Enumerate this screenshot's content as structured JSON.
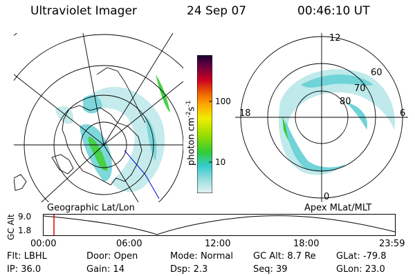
{
  "header": {
    "title": "Ultraviolet Imager",
    "date": "24 Sep 07",
    "time": "00:46:10 UT"
  },
  "left_panel": {
    "label": "Geographic Lat/Lon"
  },
  "right_panel": {
    "label": "Apex MLat/MLT",
    "mlt_labels": [
      "12",
      "18",
      "6",
      "0"
    ],
    "mlat_labels": [
      "60",
      "70",
      "80"
    ]
  },
  "colorbar": {
    "unit": "photon cm",
    "exp1": "-2",
    "mid": "s",
    "exp2": "-1",
    "ticks": [
      "100",
      "10"
    ]
  },
  "timeline": {
    "axis_title": "GC Alt",
    "y_labels": [
      "9.0",
      "1.8"
    ],
    "x_labels": [
      "00:00",
      "06:00",
      "12:00",
      "18:00",
      "23:59"
    ]
  },
  "footer": {
    "row1": [
      {
        "key": "Flt:",
        "val": "LBHL"
      },
      {
        "key": "Door:",
        "val": "Open"
      },
      {
        "key": "Mode:",
        "val": "Normal"
      },
      {
        "key": "GC Alt:",
        "val": "8.7 Re"
      },
      {
        "key": "GLat:",
        "val": "-79.8"
      }
    ],
    "row2": [
      {
        "key": "IP:",
        "val": "36.0"
      },
      {
        "key": "Gain:",
        "val": "14"
      },
      {
        "key": "Dsp:",
        "val": "2.3"
      },
      {
        "key": "Seq:",
        "val": "39"
      },
      {
        "key": "GLon:",
        "val": "23.0"
      }
    ]
  },
  "colors": {
    "cyan": "#6fd3d8",
    "light_cyan": "#bfe9ea",
    "green": "#33cc33",
    "accent_red": "#dd0000"
  }
}
